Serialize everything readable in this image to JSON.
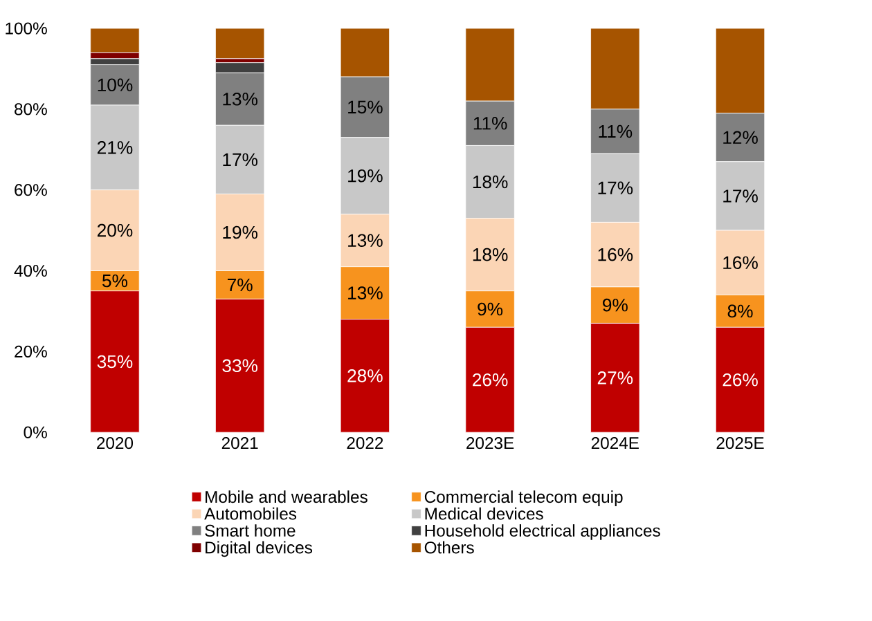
{
  "chart_data": {
    "type": "bar",
    "stacked": true,
    "categories": [
      "2020",
      "2021",
      "2022",
      "2023E",
      "2024E",
      "2025E"
    ],
    "ylim": [
      0,
      100
    ],
    "yticks": [
      {
        "value": 0,
        "label": "0%"
      },
      {
        "value": 20,
        "label": "20%"
      },
      {
        "value": 40,
        "label": "40%"
      },
      {
        "value": 60,
        "label": "60%"
      },
      {
        "value": 80,
        "label": "80%"
      },
      {
        "value": 100,
        "label": "100%"
      }
    ],
    "legend": "bottom",
    "grid": false,
    "series": [
      {
        "name": "Mobile and wearables",
        "color": "#c00000",
        "values": [
          35,
          33,
          28,
          26,
          27,
          26
        ],
        "value_labels": [
          "35%",
          "33%",
          "28%",
          "26%",
          "27%",
          "26%"
        ]
      },
      {
        "name": "Commercial telecom equip",
        "color": "#f7931e",
        "values": [
          5,
          7,
          13,
          9,
          9,
          8
        ],
        "value_labels": [
          "5%",
          "7%",
          "13%",
          "9%",
          "9%",
          "8%"
        ]
      },
      {
        "name": "Automobiles",
        "color": "#fbd5b5",
        "values": [
          20,
          19,
          13,
          18,
          16,
          16
        ],
        "value_labels": [
          "20%",
          "19%",
          "13%",
          "18%",
          "16%",
          "16%"
        ]
      },
      {
        "name": "Medical devices",
        "color": "#c8c8c8",
        "values": [
          21,
          17,
          19,
          18,
          17,
          17
        ],
        "value_labels": [
          "21%",
          "17%",
          "19%",
          "18%",
          "17%",
          "17%"
        ]
      },
      {
        "name": "Smart home",
        "color": "#808080",
        "values": [
          10,
          13,
          15,
          11,
          11,
          12
        ],
        "value_labels": [
          "10%",
          "13%",
          "15%",
          "11%",
          "11%",
          "12%"
        ]
      },
      {
        "name": "Household electrical appliances",
        "color": "#404040",
        "values": [
          1.5,
          2.5,
          0,
          0,
          0,
          0
        ]
      },
      {
        "name": "Digital devices",
        "color": "#7f0000",
        "values": [
          1.5,
          1,
          0,
          0,
          0,
          0
        ]
      },
      {
        "name": "Others",
        "color": "#a65400",
        "values": [
          6,
          7.5,
          12,
          18,
          20,
          21
        ]
      }
    ]
  }
}
